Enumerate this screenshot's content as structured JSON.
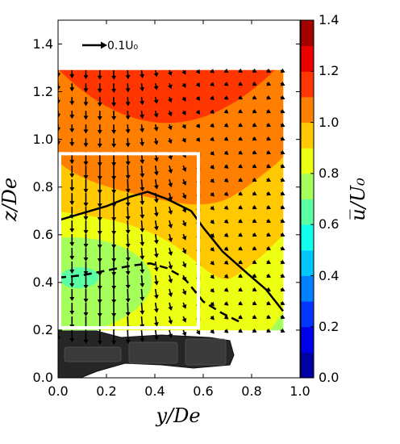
{
  "chart_data": {
    "type": "contour",
    "xlabel": "y/De",
    "ylabel": "z/De",
    "colorbar_label": "u̅/U₀",
    "xlim": [
      0.0,
      1.0
    ],
    "ylim": [
      0.0,
      1.5
    ],
    "xticks": [
      "0.0",
      "0.2",
      "0.4",
      "0.6",
      "0.8",
      "1.0"
    ],
    "yticks": [
      "0.0",
      "0.2",
      "0.4",
      "0.6",
      "0.8",
      "1.0",
      "1.2",
      "1.4"
    ],
    "colorbar_range": [
      0.0,
      1.4
    ],
    "colorbar_ticks": [
      "0.0",
      "0.2",
      "0.4",
      "0.6",
      "0.8",
      "1.0",
      "1.2",
      "1.4"
    ],
    "colormap": [
      "#00007f",
      "#0000ff",
      "#007fff",
      "#00ffff",
      "#7fff7f",
      "#ffff00",
      "#ff7f00",
      "#ff0000",
      "#7f0000"
    ],
    "reference_vector": {
      "label": "0.1U₀",
      "magnitude": 0.1
    },
    "measurement_grid": {
      "y": [
        0.0,
        0.0575,
        0.115,
        0.1725,
        0.23,
        0.2875,
        0.345,
        0.4025,
        0.46,
        0.5175,
        0.575,
        0.6325,
        0.69,
        0.7475,
        0.805,
        0.8625,
        0.92
      ],
      "z": [
        0.2,
        0.2575,
        0.315,
        0.3725,
        0.43,
        0.4875,
        0.545,
        0.6025,
        0.66,
        0.7175,
        0.775,
        0.8325,
        0.89,
        0.9475,
        1.005,
        1.0625,
        1.12,
        1.1775,
        1.235,
        1.29
      ]
    },
    "solid_line_u1": [
      [
        0.0,
        0.66
      ],
      [
        0.1,
        0.69
      ],
      [
        0.2,
        0.72
      ],
      [
        0.3,
        0.76
      ],
      [
        0.37,
        0.78
      ],
      [
        0.45,
        0.75
      ],
      [
        0.55,
        0.7
      ],
      [
        0.6,
        0.63
      ],
      [
        0.68,
        0.53
      ],
      [
        0.78,
        0.44
      ],
      [
        0.86,
        0.37
      ],
      [
        0.93,
        0.28
      ]
    ],
    "dashed_line_u09": [
      [
        0.0,
        0.42
      ],
      [
        0.1,
        0.43
      ],
      [
        0.2,
        0.45
      ],
      [
        0.3,
        0.47
      ],
      [
        0.38,
        0.48
      ],
      [
        0.45,
        0.46
      ],
      [
        0.52,
        0.42
      ],
      [
        0.56,
        0.37
      ],
      [
        0.6,
        0.32
      ],
      [
        0.68,
        0.27
      ],
      [
        0.76,
        0.23
      ]
    ],
    "inner_box": {
      "y": [
        0.0,
        0.58
      ],
      "z": [
        0.21,
        0.94
      ]
    }
  }
}
